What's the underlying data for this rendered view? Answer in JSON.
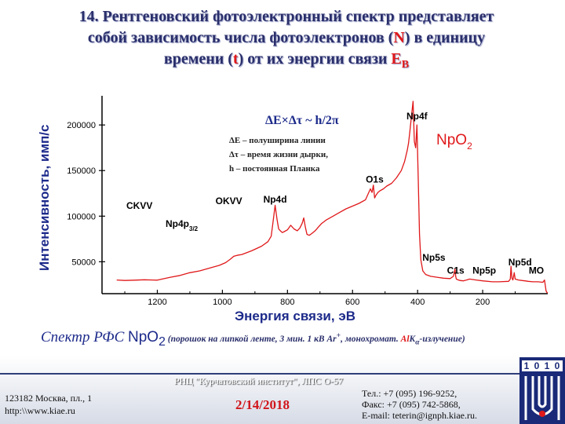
{
  "title": {
    "line1": "14. Рентгеновский фотоэлектронный спектр представляет",
    "line2a": "собой зависимость числа фотоэлектронов (",
    "N": "N",
    "line2b": ") в единицу",
    "line3a": "времени (",
    "t": "t",
    "line3b": ") от их энергии связи ",
    "E": "E",
    "Esub": "B"
  },
  "chart_data": {
    "type": "line",
    "xlabel": "Энергия связи, эВ",
    "ylabel": "Интенсивность, имп/с",
    "xlim": [
      1370,
      0
    ],
    "ylim": [
      15000,
      232000
    ],
    "x_reversed": true,
    "xticks": [
      "1200",
      "1000",
      "800",
      "600",
      "400",
      "200"
    ],
    "xtick_values": [
      1200,
      1000,
      800,
      600,
      400,
      200
    ],
    "yticks": [
      "50000",
      "100000",
      "150000",
      "200000"
    ],
    "ytick_values": [
      50000,
      100000,
      150000,
      200000
    ],
    "series": [
      {
        "name": "",
        "color": "#e0181a",
        "x": [
          1325,
          1300,
          1270,
          1240,
          1215,
          1200,
          1185,
          1160,
          1130,
          1100,
          1070,
          1040,
          1010,
          990,
          975,
          965,
          955,
          940,
          910,
          880,
          860,
          850,
          845,
          838,
          832,
          827,
          822,
          816,
          810,
          800,
          790,
          780,
          770,
          762,
          755,
          750,
          745,
          740,
          733,
          725,
          715,
          705,
          695,
          680,
          660,
          640,
          620,
          600,
          580,
          560,
          545,
          540,
          536,
          532,
          528,
          522,
          515,
          505,
          495,
          480,
          465,
          450,
          440,
          432,
          428,
          424,
          420,
          414,
          410,
          406,
          402,
          398,
          394,
          390,
          384,
          375,
          360,
          340,
          320,
          300,
          290,
          285,
          283,
          281,
          278,
          270,
          260,
          250,
          240,
          220,
          200,
          170,
          150,
          120,
          115,
          113,
          110,
          107,
          103,
          100,
          90,
          80,
          70,
          60,
          45,
          30,
          15,
          10,
          8,
          5,
          2,
          0
        ],
        "y": [
          30000,
          29500,
          29800,
          30200,
          30000,
          29800,
          31000,
          33000,
          35000,
          38000,
          40000,
          43000,
          46000,
          49000,
          53000,
          56000,
          57000,
          58000,
          62000,
          67000,
          72000,
          78000,
          92000,
          112000,
          96000,
          86000,
          84000,
          82000,
          83000,
          85000,
          90000,
          86000,
          84000,
          87000,
          92000,
          98000,
          88000,
          80000,
          79000,
          81000,
          84000,
          88000,
          92000,
          96000,
          100000,
          104000,
          108000,
          111000,
          114000,
          118000,
          130000,
          126000,
          134000,
          120000,
          123000,
          126000,
          128000,
          130000,
          133000,
          136000,
          142000,
          150000,
          160000,
          172000,
          180000,
          192000,
          206000,
          226000,
          182000,
          175000,
          200000,
          140000,
          80000,
          52000,
          40000,
          36000,
          34000,
          33000,
          32000,
          31500,
          34000,
          42000,
          34000,
          31000,
          30500,
          29500,
          29000,
          30000,
          31000,
          30000,
          29000,
          28000,
          28000,
          28500,
          31000,
          45000,
          32000,
          30000,
          38000,
          31000,
          30000,
          29500,
          29000,
          28500,
          28000,
          28000,
          27500,
          30000,
          25000,
          18000,
          16000,
          16000
        ]
      }
    ],
    "peak_labels": [
      {
        "text": "Np4f",
        "x": 402,
        "y": 206000
      },
      {
        "text": "O1s",
        "x": 532,
        "y": 137000
      },
      {
        "text": "Np4d",
        "x": 838,
        "y": 115000
      },
      {
        "text": "OKVV",
        "x": 980,
        "y": 113000
      },
      {
        "text": "CKVV",
        "x": 1255,
        "y": 108000
      },
      {
        "text": "Np4p",
        "sub": "3/2",
        "x": 1125,
        "y": 88000
      },
      {
        "text": "Np5s",
        "x": 350,
        "y": 51000
      },
      {
        "text": "C1s",
        "x": 283,
        "y": 37000
      },
      {
        "text": "Np5p",
        "x": 195,
        "y": 37000
      },
      {
        "text": "Np5d",
        "x": 85,
        "y": 46000
      },
      {
        "text": "MO",
        "x": 35,
        "y": 37000
      }
    ],
    "compound": {
      "text": "Np",
      "sub": "O",
      "sub2": "2",
      "color": "#e0181a"
    },
    "formula": {
      "text": "ΔE×Δτ ~ h/2π"
    },
    "legend_lines": [
      "ΔE – полуширина линии",
      "Δτ – время жизни дырки,",
      "h –  постоянная Планка"
    ]
  },
  "caption": {
    "part1": "Спектр РФС ",
    "np": "NpO",
    "np_sub": "2",
    "part2": " (порошок на липкой ленте, 3 мин. 1 кВ Ar",
    "sup": "+",
    "part3": ", монохромат. ",
    "al": "Al",
    "k": "K",
    "alpha": "α",
    "part4": "-излучение)"
  },
  "footer": {
    "org": "РНЦ \"Курчатовский институт\", ЛПС О-57",
    "address_line1": "123182 Москва, пл., 1",
    "address_line2": "http:\\\\www.kiae.ru",
    "date": "2/14/2018",
    "phone": "Тел.:    +7 (095) 196-9252,",
    "fax": "Факс:  +7 (095) 742-5868,",
    "email": "E-mail: teterin@ignph.kiae.ru."
  },
  "logo": {
    "digits": [
      "1",
      "0",
      "1",
      "0"
    ],
    "color": "#1a2a78"
  }
}
